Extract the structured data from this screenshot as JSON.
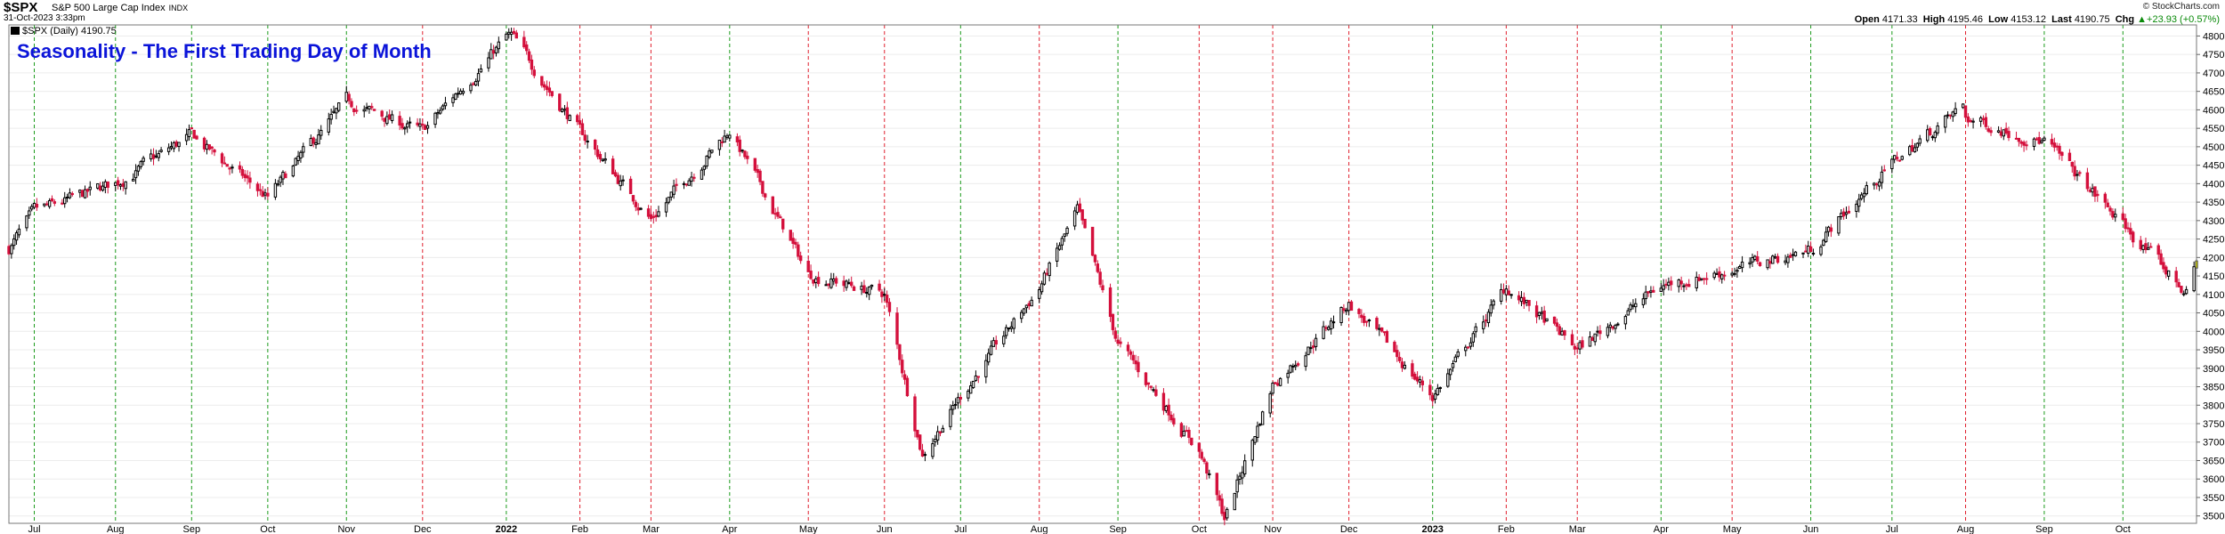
{
  "header": {
    "symbol": "$SPX",
    "name": "S&P 500 Large Cap Index",
    "exchange": "INDX",
    "date": "31-Oct-2023 3:33pm",
    "legend": "$SPX (Daily) 4190.75",
    "copyright": "© StockCharts.com",
    "quote": {
      "open_label": "Open",
      "open": "4171.33",
      "high_label": "High",
      "high": "4195.46",
      "low_label": "Low",
      "low": "4153.12",
      "last_label": "Last",
      "last": "4190.75",
      "chg_label": "Chg",
      "chg": "+23.93 (+0.57%)",
      "chg_arrow": "▲"
    }
  },
  "chart_title": "Seasonality - The First Trading Day of Month",
  "colors": {
    "up": "#000000",
    "down": "#d4103c",
    "last_bar": "#c8c800",
    "title": "#0b14d9",
    "green_line": "#1a9a1a",
    "red_line": "#e0202e",
    "grid": "#ececec"
  },
  "chart_data": {
    "type": "candlestick",
    "title": "Seasonality - The First Trading Day of Month",
    "series": [
      {
        "name": "$SPX (Daily)"
      }
    ],
    "ylim": [
      3480,
      4830
    ],
    "y_ticks": [
      3500,
      3550,
      3600,
      3650,
      3700,
      3750,
      3800,
      3850,
      3900,
      3950,
      4000,
      4050,
      4100,
      4150,
      4200,
      4250,
      4300,
      4350,
      4400,
      4450,
      4500,
      4550,
      4600,
      4650,
      4700,
      4750,
      4800
    ],
    "y_axis_side": "right",
    "x_labels": [
      "Jul",
      "Aug",
      "Sep",
      "Oct",
      "Nov",
      "Dec",
      "2022",
      "Feb",
      "Mar",
      "Apr",
      "May",
      "Jun",
      "Jul",
      "Aug",
      "Sep",
      "Oct",
      "Nov",
      "Dec",
      "2023",
      "Feb",
      "Mar",
      "Apr",
      "May",
      "Jun",
      "Jul",
      "Aug",
      "Sep",
      "Oct"
    ],
    "x_labels_bold": [
      "2022",
      "2023"
    ],
    "date_range": [
      "2021-06-21",
      "2023-10-31"
    ],
    "month_starts": [
      "2021-07-01",
      "2021-08-02",
      "2021-09-01",
      "2021-10-01",
      "2021-11-01",
      "2021-12-01",
      "2022-01-03",
      "2022-02-01",
      "2022-03-01",
      "2022-04-01",
      "2022-05-02",
      "2022-06-01",
      "2022-07-01",
      "2022-08-01",
      "2022-09-01",
      "2022-10-03",
      "2022-11-01",
      "2022-12-01",
      "2023-01-03",
      "2023-02-01",
      "2023-03-01",
      "2023-04-03",
      "2023-05-01",
      "2023-06-01",
      "2023-07-03",
      "2023-08-01",
      "2023-09-01",
      "2023-10-02"
    ],
    "first_day_lines": [
      "green",
      "green",
      "green",
      "green",
      "green",
      "red",
      "green",
      "red",
      "red",
      "green",
      "red",
      "red",
      "green",
      "red",
      "green",
      "red",
      "red",
      "red",
      "green",
      "red",
      "red",
      "green",
      "red",
      "green",
      "green",
      "red",
      "green",
      "green"
    ],
    "monthly_path": [
      [
        "2021-06-21",
        4225
      ],
      [
        "2021-07-01",
        4320
      ],
      [
        "2021-08-02",
        4400
      ],
      [
        "2021-09-01",
        4530
      ],
      [
        "2021-10-01",
        4360
      ],
      [
        "2021-11-01",
        4620
      ],
      [
        "2021-12-01",
        4540
      ],
      [
        "2022-01-03",
        4796
      ],
      [
        "2022-02-01",
        4540
      ],
      [
        "2022-03-01",
        4305
      ],
      [
        "2022-04-01",
        4545
      ],
      [
        "2022-05-02",
        4155
      ],
      [
        "2022-06-01",
        4100
      ],
      [
        "2022-07-01",
        3825
      ],
      [
        "2022-08-01",
        4118
      ],
      [
        "2022-09-01",
        3966
      ],
      [
        "2022-10-03",
        3678
      ],
      [
        "2022-11-01",
        3857
      ],
      [
        "2022-12-01",
        4076
      ],
      [
        "2023-01-03",
        3824
      ],
      [
        "2023-02-01",
        4119
      ],
      [
        "2023-03-01",
        3951
      ],
      [
        "2023-04-03",
        4124
      ],
      [
        "2023-05-01",
        4167
      ],
      [
        "2023-06-01",
        4221
      ],
      [
        "2023-07-03",
        4455
      ],
      [
        "2023-08-01",
        4577
      ],
      [
        "2023-09-01",
        4515
      ],
      [
        "2023-10-02",
        4288
      ],
      [
        "2023-10-31",
        4190.75
      ]
    ],
    "key_points": [
      [
        "2022-01-03",
        4818,
        "high"
      ],
      [
        "2022-06-16",
        3667,
        "low"
      ],
      [
        "2022-08-16",
        4325,
        "high"
      ],
      [
        "2022-10-13",
        3491,
        "low"
      ],
      [
        "2023-07-31",
        4607,
        "high"
      ],
      [
        "2023-10-27",
        4104,
        "low"
      ]
    ],
    "last_candle": {
      "open": 4171.33,
      "high": 4195.46,
      "low": 4153.12,
      "close": 4190.75
    }
  }
}
